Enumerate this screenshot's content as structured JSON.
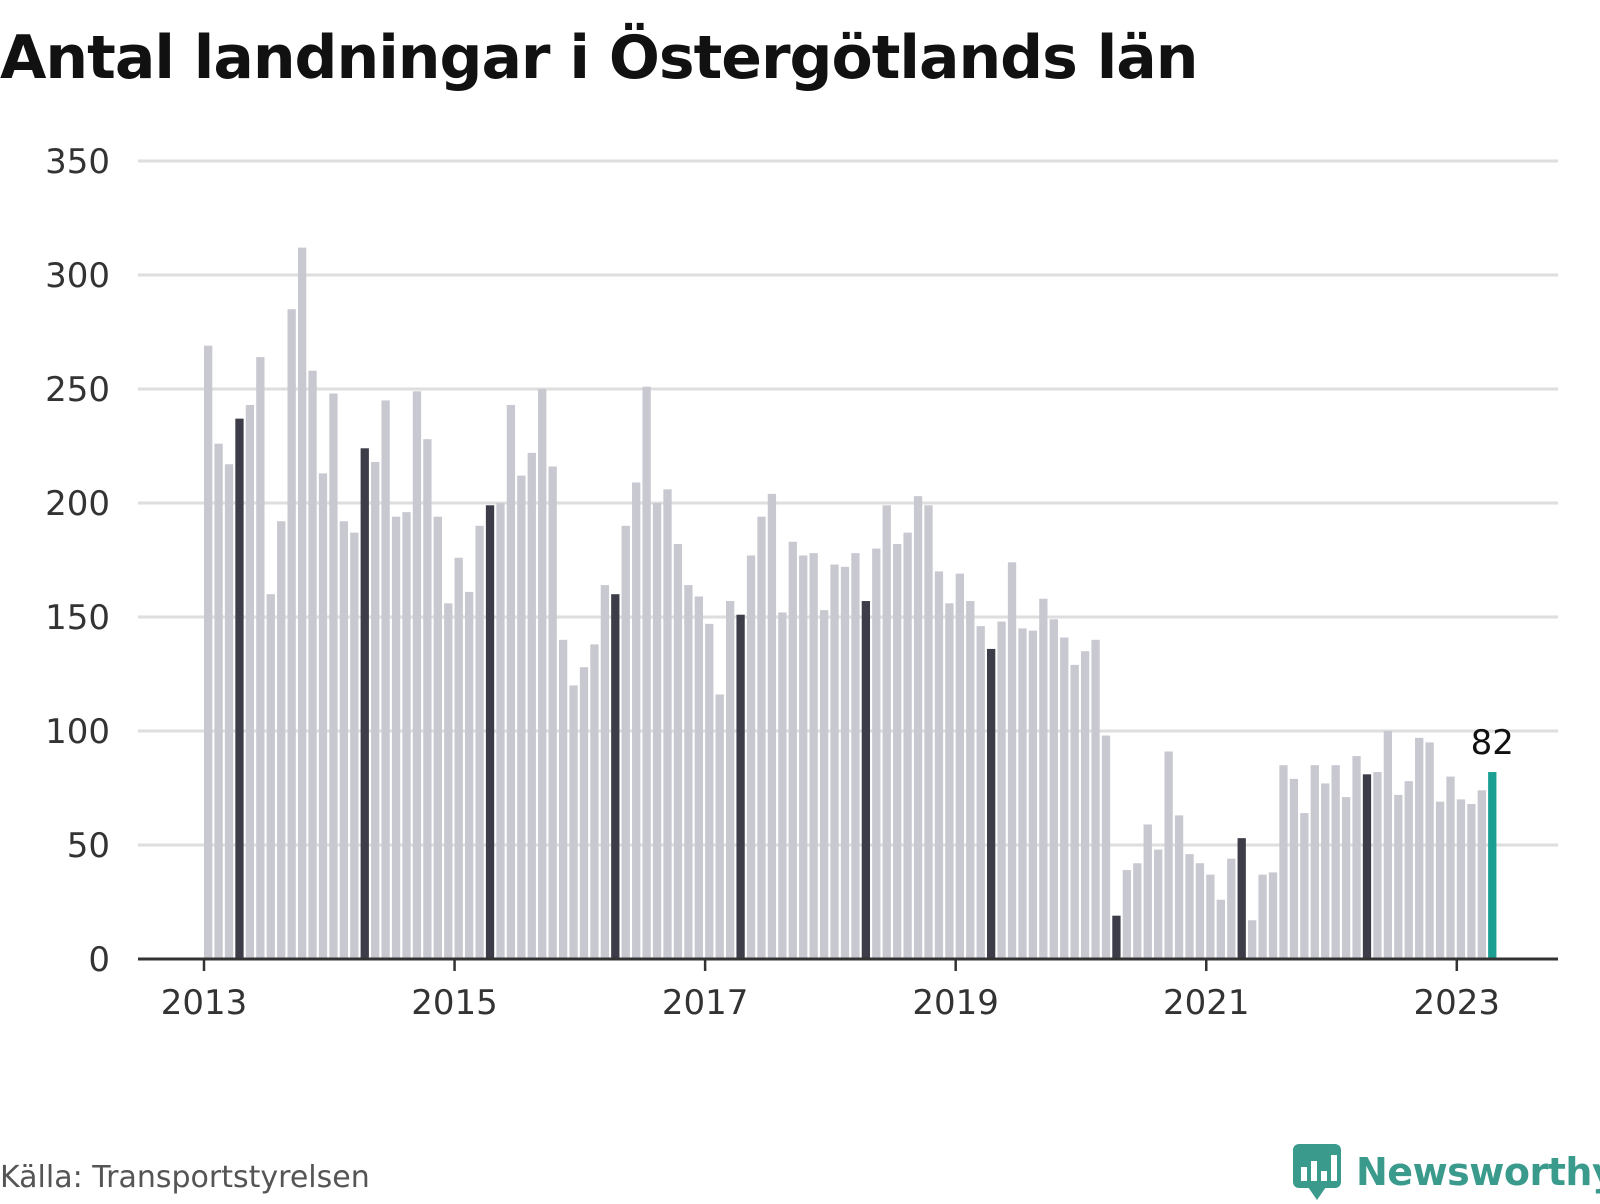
{
  "title": "Antal landningar i Östergötlands län",
  "source": "Källa: Transportstyrelsen",
  "brand": {
    "name": "Newsworthy",
    "logo_icon": "newsworthy-logo-icon"
  },
  "colors": {
    "bar": "#c8c8d0",
    "bar_highlight": "#3d3d4a",
    "bar_latest": "#1a9f92",
    "grid": "#dedede",
    "axis": "#333333",
    "text": "#111111",
    "source_text": "#555555",
    "brand": "#3a9a8b"
  },
  "chart_data": {
    "type": "bar",
    "title": "Antal landningar i Östergötlands län",
    "xlabel": "",
    "ylabel": "",
    "ylim": [
      0,
      350
    ],
    "yticks": [
      0,
      50,
      100,
      150,
      200,
      250,
      300,
      350
    ],
    "x_start": "2013-01",
    "x_end": "2023-04",
    "x_ticks": [
      "2013",
      "2015",
      "2017",
      "2019",
      "2021",
      "2023"
    ],
    "grid": true,
    "legend": "none",
    "highlight": "April each year (dark bars); latest month (teal)",
    "latest_label": "82",
    "series": [
      {
        "values": [
          269,
          226,
          217,
          237,
          243,
          264,
          160,
          192,
          285,
          312,
          258,
          213,
          248,
          192,
          187,
          224,
          218,
          245,
          194,
          196,
          249,
          228,
          194,
          156,
          176,
          161,
          190,
          199,
          200,
          243,
          212,
          222,
          250,
          216,
          140,
          120,
          128,
          138,
          164,
          160,
          190,
          209,
          251,
          200,
          206,
          182,
          164,
          159,
          147,
          116,
          157,
          151,
          177,
          194,
          204,
          152,
          183,
          177,
          178,
          153,
          173,
          172,
          178,
          157,
          180,
          199,
          182,
          187,
          203,
          199,
          170,
          156,
          169,
          157,
          146,
          136,
          148,
          174,
          145,
          144,
          158,
          149,
          141,
          129,
          135,
          140,
          98,
          19,
          39,
          42,
          59,
          48,
          91,
          63,
          46,
          42,
          37,
          26,
          44,
          53,
          17,
          37,
          38,
          85,
          79,
          64,
          85,
          77,
          85,
          71,
          89,
          81,
          82,
          100,
          72,
          78,
          97,
          95,
          69,
          80,
          70,
          68,
          74,
          82
        ]
      }
    ]
  }
}
